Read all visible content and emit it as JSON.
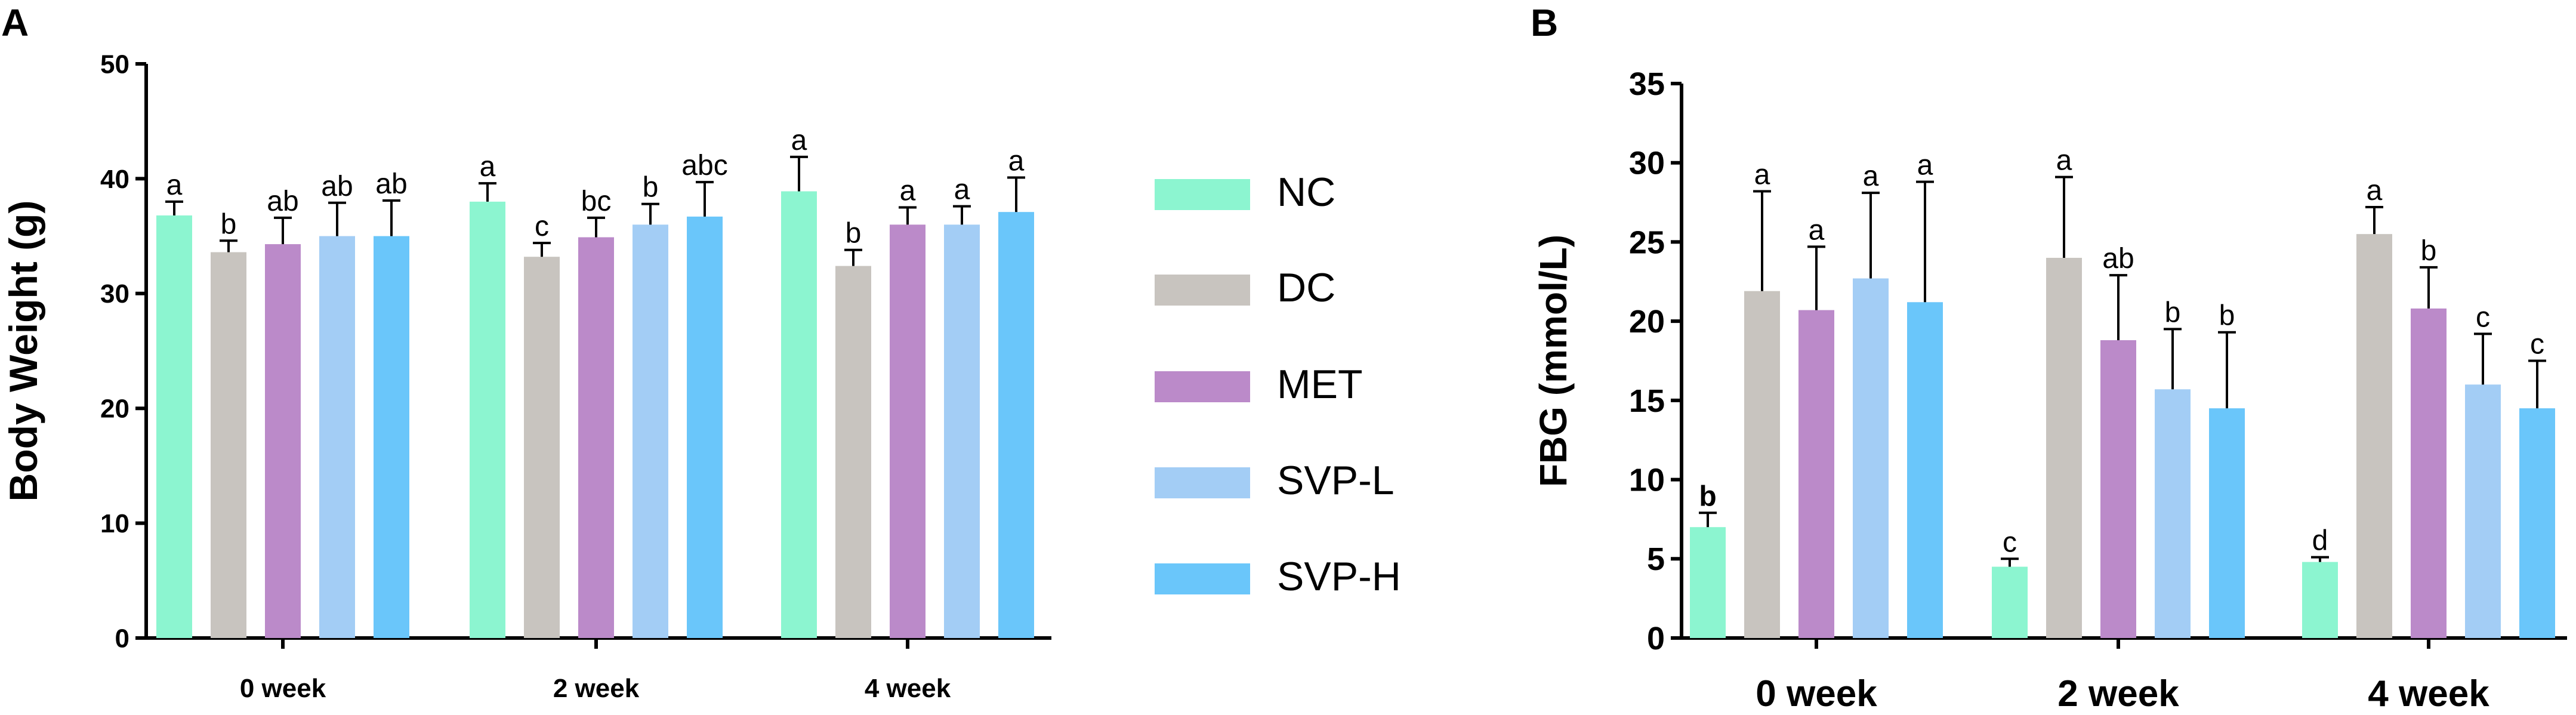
{
  "panels": {
    "a_label": "A",
    "b_label": "B"
  },
  "legend": {
    "entries": [
      "NC",
      "DC",
      "MET",
      "SVP-L",
      "SVP-H"
    ]
  },
  "colors": {
    "NC": "#8cf5d0",
    "DC": "#c8c4bf",
    "MET": "#bb8ac9",
    "SVP-L": "#a3cdf5",
    "SVP-H": "#6ac6fa",
    "axis": "#000000"
  },
  "chart_data": [
    {
      "type": "bar",
      "panel": "A",
      "title": "",
      "xlabel": "",
      "ylabel": "Body Weight (g)",
      "ylim": [
        0,
        50
      ],
      "yticks": [
        0,
        10,
        20,
        30,
        40,
        50
      ],
      "categories": [
        "0 week",
        "2 week",
        "4 week"
      ],
      "series": [
        {
          "name": "NC",
          "values": [
            36.8,
            38.0,
            38.9
          ],
          "errors": [
            1.2,
            1.6,
            3.0
          ],
          "letters": [
            "a",
            "a",
            "a"
          ]
        },
        {
          "name": "DC",
          "values": [
            33.6,
            33.2,
            32.4
          ],
          "errors": [
            1.0,
            1.2,
            1.4
          ],
          "letters": [
            "b",
            "c",
            "b"
          ]
        },
        {
          "name": "MET",
          "values": [
            34.3,
            34.9,
            36.0
          ],
          "errors": [
            2.3,
            1.7,
            1.5
          ],
          "letters": [
            "ab",
            "bc",
            "a"
          ]
        },
        {
          "name": "SVP-L",
          "values": [
            35.0,
            36.0,
            36.0
          ],
          "errors": [
            2.9,
            1.8,
            1.6
          ],
          "letters": [
            "ab",
            "b",
            "a"
          ]
        },
        {
          "name": "SVP-H",
          "values": [
            35.0,
            36.7,
            37.1
          ],
          "errors": [
            3.1,
            3.0,
            3.0
          ],
          "letters": [
            "ab",
            "abc",
            "a"
          ]
        }
      ]
    },
    {
      "type": "bar",
      "panel": "B",
      "title": "",
      "xlabel": "",
      "ylabel": "FBG (mmol/L)",
      "ylim": [
        0,
        35
      ],
      "yticks": [
        0,
        5,
        10,
        15,
        20,
        25,
        30,
        35
      ],
      "categories": [
        "0 week",
        "2 week",
        "4 week"
      ],
      "series": [
        {
          "name": "NC",
          "values": [
            7.0,
            4.5,
            4.8
          ],
          "errors": [
            0.9,
            0.5,
            0.3
          ],
          "letters": [
            "b",
            "c",
            "d"
          ]
        },
        {
          "name": "DC",
          "values": [
            21.9,
            24.0,
            25.5
          ],
          "errors": [
            6.3,
            5.1,
            1.7
          ],
          "letters": [
            "a",
            "a",
            "a"
          ]
        },
        {
          "name": "MET",
          "values": [
            20.7,
            18.8,
            20.8
          ],
          "errors": [
            4.0,
            4.1,
            2.6
          ],
          "letters": [
            "a",
            "ab",
            "b"
          ]
        },
        {
          "name": "SVP-L",
          "values": [
            22.7,
            15.7,
            16.0
          ],
          "errors": [
            5.4,
            3.8,
            3.2
          ],
          "letters": [
            "a",
            "b",
            "c"
          ]
        },
        {
          "name": "SVP-H",
          "values": [
            21.2,
            14.5,
            14.5
          ],
          "errors": [
            7.6,
            4.8,
            3.0
          ],
          "letters": [
            "a",
            "b",
            "c"
          ]
        }
      ]
    }
  ]
}
